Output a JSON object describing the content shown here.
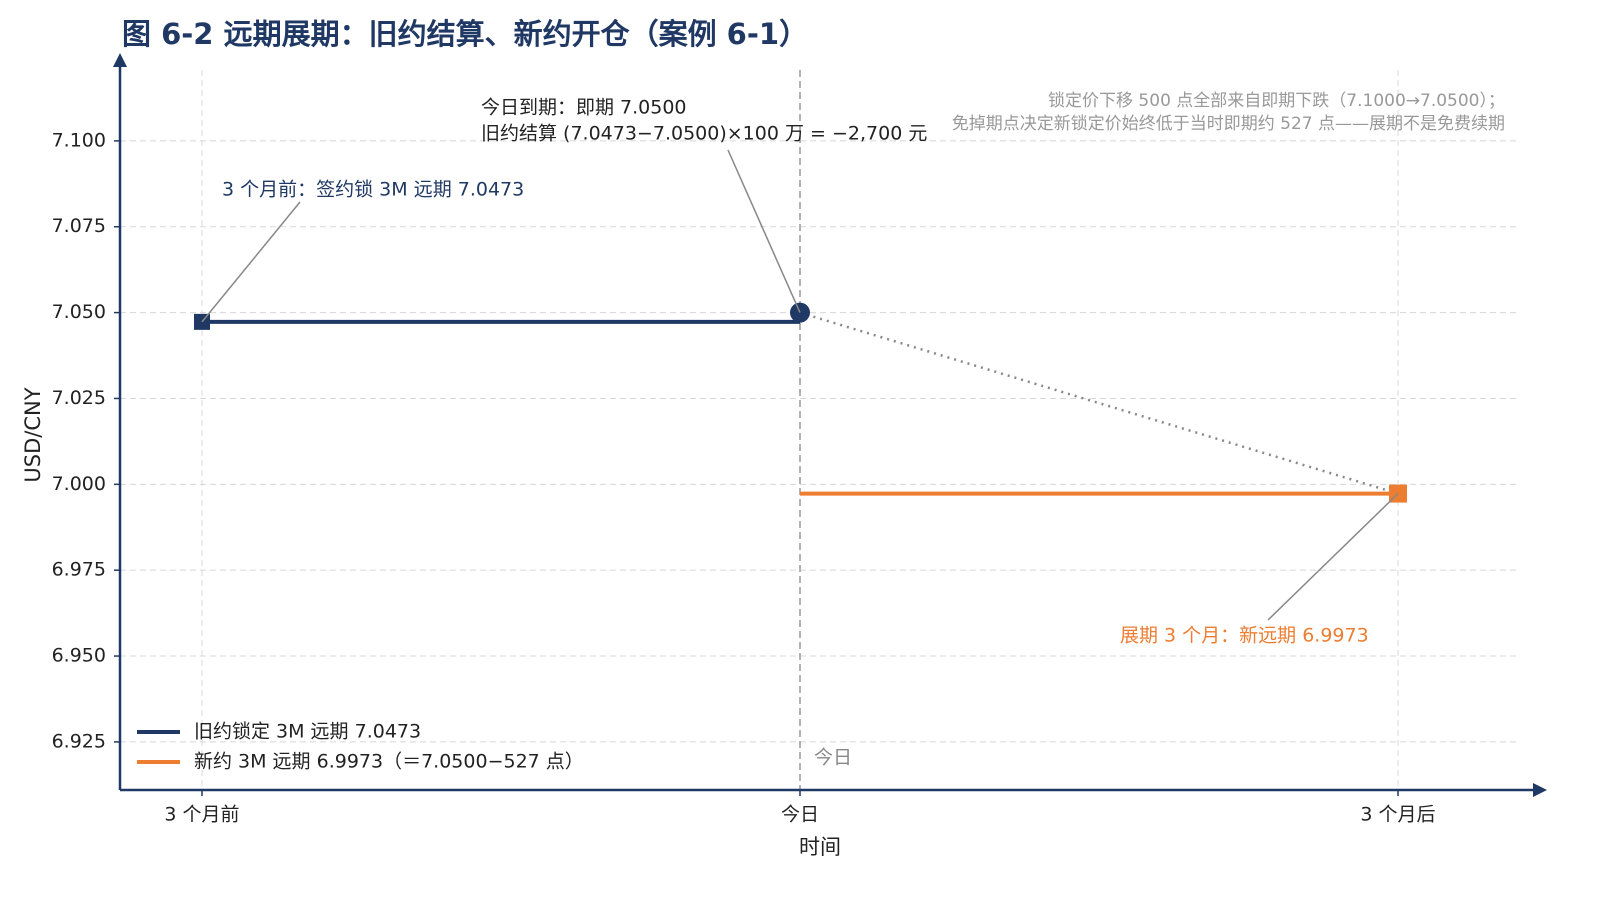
{
  "chart_data": {
    "type": "line",
    "title": "图 6-2 远期展期：旧约结算、新约开仓（案例 6-1）",
    "x_label": "时间",
    "y_label": "USD/CNY",
    "categories": [
      "3 个月前",
      "今日",
      "3 个月后"
    ],
    "series": [
      {
        "name": "旧约锁定 3M 远期 7.0473",
        "color": "#1f3864",
        "values": [
          7.0473,
          7.0473,
          null
        ]
      },
      {
        "name": "新约 3M 远期 6.9973（＝7.0500−527 点）",
        "color": "#ed7d31",
        "values": [
          null,
          6.9973,
          6.9973
        ]
      }
    ],
    "spot_path": {
      "color": "#888888",
      "values": [
        null,
        7.05,
        6.9973
      ]
    },
    "ylim": [
      6.911,
      7.125
    ],
    "yticks": [
      6.925,
      {
        "value": 6.95,
        "label": "6.950"
      },
      6.975,
      {
        "value": 7.0,
        "label": "7.000"
      },
      7.025,
      {
        "value": 7.05,
        "label": "7.050"
      },
      7.075,
      {
        "value": 7.1,
        "label": "7.100"
      }
    ],
    "grid": true,
    "legend": "lower left",
    "today_label": "今日",
    "annotations": [
      {
        "text": [
          "3 个月前：签约锁 3M 远期 7.0473"
        ],
        "color": "#1f3864"
      },
      {
        "text": [
          "今日到期：即期 7.0500",
          "旧约结算 (7.0473−7.0500)×100 万 = −2,700 元"
        ],
        "color": "#222222"
      },
      {
        "text": [
          "展期 3 个月：新远期 6.9973"
        ],
        "color": "#ed7d31"
      }
    ],
    "note": [
      "锁定价下移 500 点全部来自即期下跌（7.1000→7.0500）；",
      "免掉期点决定新锁定价始终低于当时即期约 527 点——展期不是免费续期"
    ]
  }
}
